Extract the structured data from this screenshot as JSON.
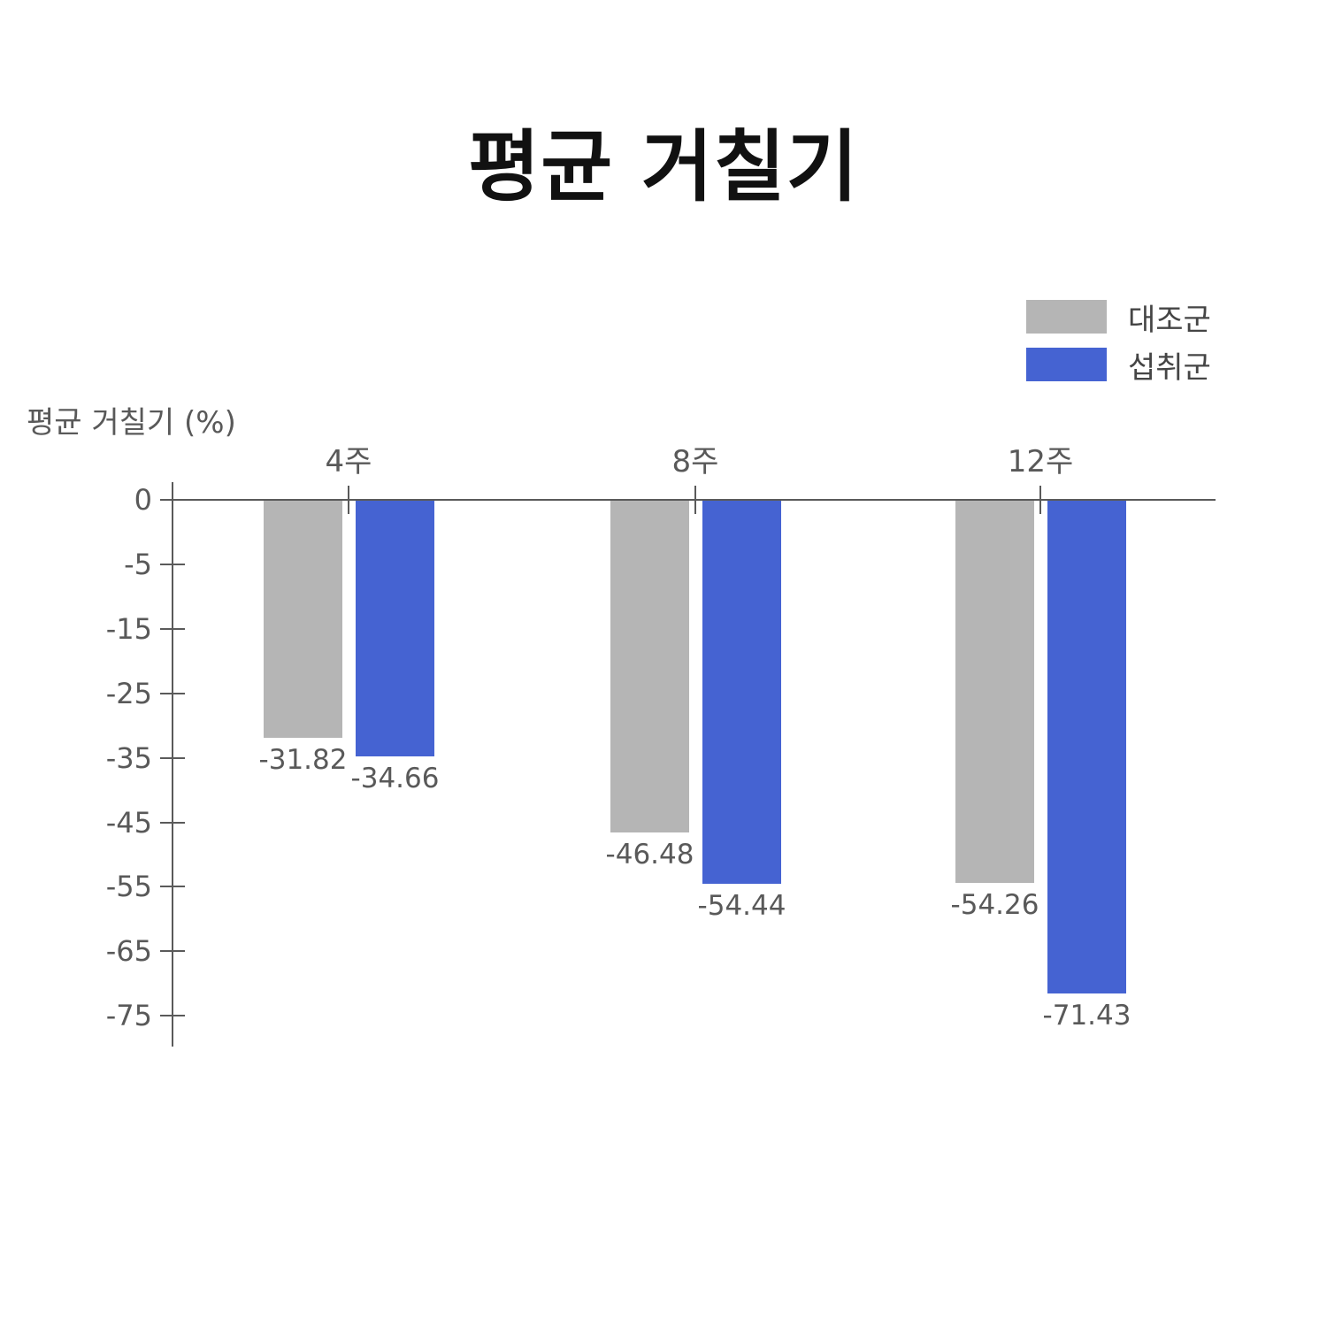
{
  "page": {
    "background": "#ffffff"
  },
  "chart_data": {
    "type": "bar",
    "title": "평균 거칠기",
    "ylabel": "평균 거칠기 (%)",
    "categories": [
      "4주",
      "8주",
      "12주"
    ],
    "series": [
      {
        "name": "대조군",
        "color": "#b5b5b5",
        "values": [
          -31.82,
          -46.48,
          -54.26
        ]
      },
      {
        "name": "섭취군",
        "color": "#4563d2",
        "values": [
          -34.66,
          -54.44,
          -71.43
        ]
      }
    ],
    "value_labels": [
      [
        "-31.82",
        "-46.48",
        "-54.26"
      ],
      [
        "-34.66",
        "-54.44",
        "-71.43"
      ]
    ],
    "y_ticks": [
      "0",
      "-5",
      "-15",
      "-25",
      "-35",
      "-45",
      "-55",
      "-65",
      "-75"
    ],
    "y_tick_values": [
      0,
      -5,
      -15,
      -25,
      -35,
      -45,
      -55,
      -65,
      -75
    ],
    "bar_direction": "down",
    "grid": false,
    "legend_position": "top-right",
    "title_color": "#111111",
    "text_color": "#595959",
    "axis_color": "#5a5a5a"
  }
}
